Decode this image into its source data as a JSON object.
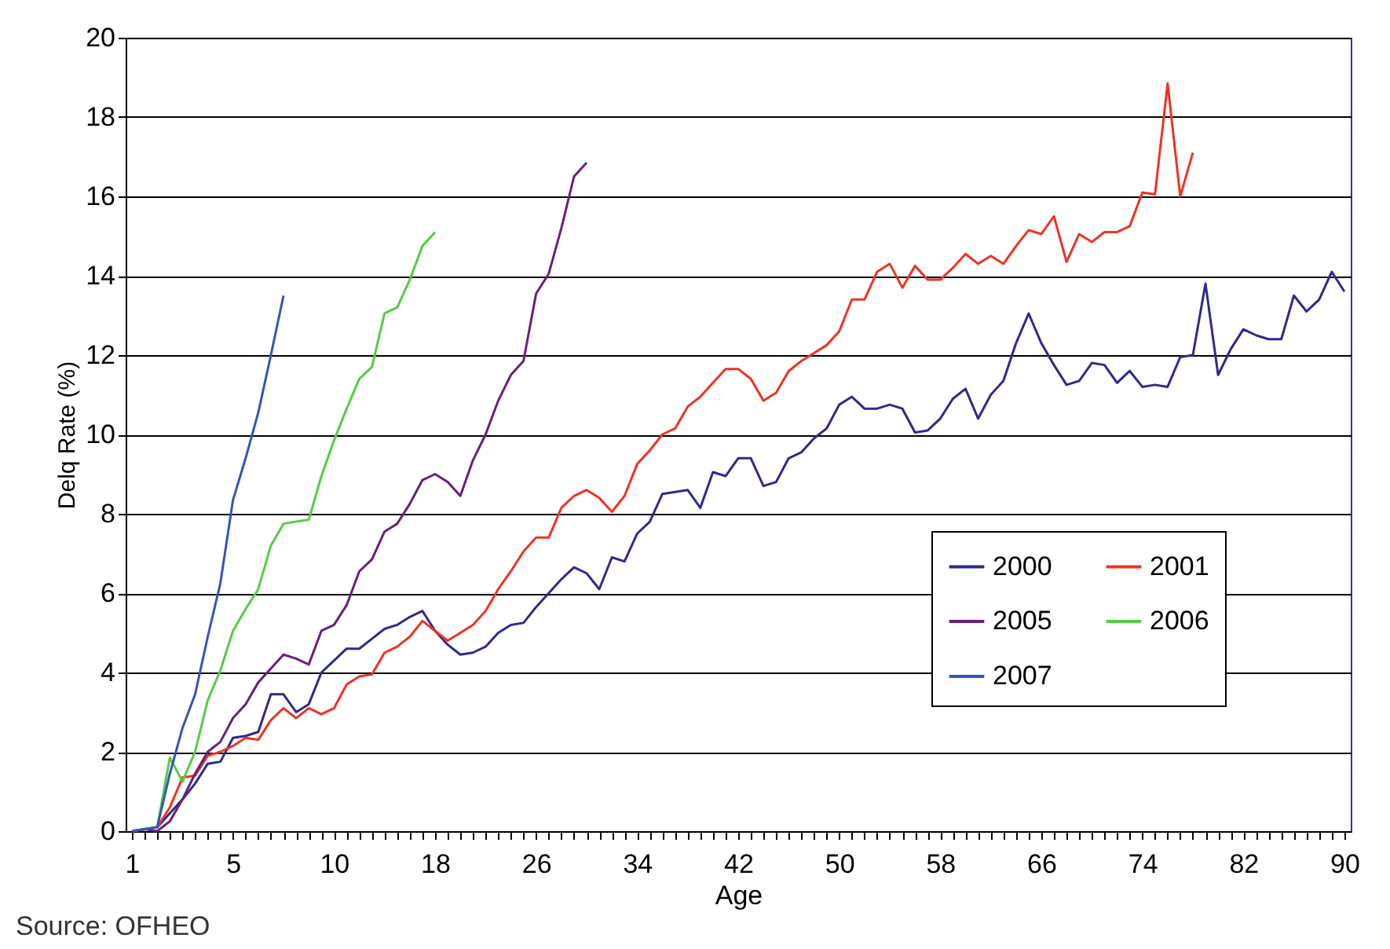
{
  "chart_data": {
    "type": "line",
    "xlabel": "Age",
    "ylabel": "Delq Rate (%)",
    "categories": [
      "1",
      null,
      null,
      null,
      null,
      null,
      null,
      null,
      "5",
      null,
      null,
      null,
      null,
      null,
      null,
      null,
      "10",
      null,
      null,
      null,
      null,
      null,
      null,
      null,
      "18",
      null,
      null,
      null,
      null,
      null,
      null,
      null,
      "26",
      null,
      null,
      null,
      null,
      null,
      null,
      null,
      "34",
      null,
      null,
      null,
      null,
      null,
      null,
      null,
      "42",
      null,
      null,
      null,
      null,
      null,
      null,
      null,
      "50",
      null,
      null,
      null,
      null,
      null,
      null,
      null,
      "58",
      null,
      null,
      null,
      null,
      null,
      null,
      null,
      "66",
      null,
      null,
      null,
      null,
      null,
      null,
      null,
      "74",
      null,
      null,
      null,
      null,
      null,
      null,
      null,
      "82",
      null,
      null,
      null,
      null,
      null,
      null,
      null,
      "90"
    ],
    "ylim": [
      0,
      20
    ],
    "yticks": [
      0,
      2,
      4,
      6,
      8,
      10,
      12,
      14,
      16,
      18,
      20
    ],
    "grid": "y",
    "legend": "bottom right",
    "marker": "none",
    "line_style": "solid",
    "series": [
      {
        "name": "2000",
        "color": "#2e2a8c",
        "values": [
          0,
          0.05,
          0.1,
          0.45,
          0.8,
          1.2,
          1.7,
          1.75,
          2.35,
          2.4,
          2.5,
          3.45,
          3.45,
          3.0,
          3.2,
          4.0,
          4.3,
          4.6,
          4.6,
          4.85,
          5.1,
          5.2,
          5.4,
          5.55,
          5.05,
          4.7,
          4.45,
          4.5,
          4.65,
          5.0,
          5.2,
          5.25,
          5.65,
          6.0,
          6.35,
          6.65,
          6.5,
          6.1,
          6.9,
          6.8,
          7.5,
          7.8,
          8.5,
          8.55,
          8.6,
          8.15,
          9.05,
          8.95,
          9.4,
          9.4,
          8.7,
          8.8,
          9.4,
          9.55,
          9.9,
          10.15,
          10.75,
          10.95,
          10.65,
          10.65,
          10.75,
          10.65,
          10.05,
          10.1,
          10.4,
          10.9,
          11.15,
          10.4,
          11.0,
          11.35,
          12.3,
          13.05,
          12.3,
          11.75,
          11.25,
          11.35,
          11.8,
          11.75,
          11.3,
          11.6,
          11.2,
          11.25,
          11.2,
          11.95,
          12.0,
          13.8,
          11.5,
          12.15,
          12.65,
          12.5,
          12.4,
          12.4,
          13.5,
          13.1,
          13.4,
          14.1,
          13.6
        ]
      },
      {
        "name": "2001",
        "color": "#ee3322",
        "values": [
          0,
          0.05,
          0.1,
          0.6,
          1.35,
          1.4,
          1.9,
          2.0,
          2.15,
          2.35,
          2.3,
          2.8,
          3.1,
          2.85,
          3.1,
          2.95,
          3.1,
          3.7,
          3.9,
          3.95,
          4.5,
          4.65,
          4.9,
          5.3,
          5.05,
          4.8,
          5.0,
          5.2,
          5.55,
          6.1,
          6.55,
          7.05,
          7.4,
          7.4,
          8.15,
          8.45,
          8.6,
          8.4,
          8.05,
          8.45,
          9.25,
          9.6,
          10.0,
          10.15,
          10.7,
          10.95,
          11.3,
          11.65,
          11.65,
          11.4,
          10.85,
          11.05,
          11.6,
          11.85,
          12.05,
          12.25,
          12.6,
          13.4,
          13.4,
          14.1,
          14.3,
          13.7,
          14.25,
          13.9,
          13.9,
          14.2,
          14.55,
          14.3,
          14.5,
          14.3,
          14.75,
          15.15,
          15.05,
          15.5,
          14.35,
          15.05,
          14.85,
          15.1,
          15.1,
          15.25,
          16.1,
          16.05,
          18.85,
          16.0,
          17.1,
          null,
          null,
          null,
          null,
          null,
          null,
          null,
          null,
          null,
          null,
          null,
          null
        ]
      },
      {
        "name": "2005",
        "color": "#6a1f7a",
        "values": [
          0,
          0.05,
          0,
          0.25,
          0.8,
          1.45,
          2.0,
          2.25,
          2.85,
          3.2,
          3.75,
          4.1,
          4.45,
          4.35,
          4.2,
          5.05,
          5.2,
          5.7,
          6.55,
          6.85,
          7.55,
          7.75,
          8.25,
          8.85,
          9.0,
          8.8,
          8.45,
          9.35,
          10.0,
          10.85,
          11.5,
          11.85,
          13.55,
          14.05,
          15.2,
          16.5,
          16.85,
          null,
          null,
          null,
          null,
          null,
          null,
          null,
          null,
          null,
          null,
          null,
          null,
          null,
          null,
          null,
          null,
          null,
          null,
          null,
          null,
          null,
          null,
          null,
          null,
          null,
          null,
          null,
          null,
          null,
          null,
          null,
          null,
          null,
          null,
          null,
          null,
          null,
          null,
          null,
          null,
          null,
          null,
          null,
          null,
          null,
          null,
          null,
          null,
          null,
          null,
          null,
          null,
          null,
          null,
          null,
          null,
          null,
          null,
          null,
          null
        ]
      },
      {
        "name": "2006",
        "color": "#55cc44",
        "values": [
          0,
          0.05,
          0.1,
          1.85,
          1.25,
          2.0,
          3.3,
          4.05,
          5.05,
          5.6,
          6.1,
          7.2,
          7.75,
          7.8,
          7.85,
          8.95,
          9.85,
          10.65,
          11.4,
          11.7,
          13.05,
          13.2,
          13.9,
          14.75,
          15.1,
          null,
          null,
          null,
          null,
          null,
          null,
          null,
          null,
          null,
          null,
          null,
          null,
          null,
          null,
          null,
          null,
          null,
          null,
          null,
          null,
          null,
          null,
          null,
          null,
          null,
          null,
          null,
          null,
          null,
          null,
          null,
          null,
          null,
          null,
          null,
          null,
          null,
          null,
          null,
          null,
          null,
          null,
          null,
          null,
          null,
          null,
          null,
          null,
          null,
          null,
          null,
          null,
          null,
          null,
          null,
          null,
          null,
          null,
          null,
          null,
          null,
          null,
          null,
          null,
          null,
          null,
          null,
          null,
          null,
          null,
          null,
          null
        ]
      },
      {
        "name": "2007",
        "color": "#3355bb",
        "values": [
          0,
          0.05,
          0.1,
          1.45,
          2.6,
          3.45,
          4.9,
          6.25,
          8.35,
          9.4,
          10.55,
          12.0,
          13.5,
          null,
          null,
          null,
          null,
          null,
          null,
          null,
          null,
          null,
          null,
          null,
          null,
          null,
          null,
          null,
          null,
          null,
          null,
          null,
          null,
          null,
          null,
          null,
          null,
          null,
          null,
          null,
          null,
          null,
          null,
          null,
          null,
          null,
          null,
          null,
          null,
          null,
          null,
          null,
          null,
          null,
          null,
          null,
          null,
          null,
          null,
          null,
          null,
          null,
          null,
          null,
          null,
          null,
          null,
          null,
          null,
          null,
          null,
          null,
          null,
          null,
          null,
          null,
          null,
          null,
          null,
          null,
          null,
          null,
          null,
          null,
          null,
          null,
          null,
          null,
          null,
          null,
          null,
          null,
          null,
          null,
          null,
          null,
          null
        ]
      }
    ],
    "annotations": [
      "Source: OFHEO"
    ]
  }
}
